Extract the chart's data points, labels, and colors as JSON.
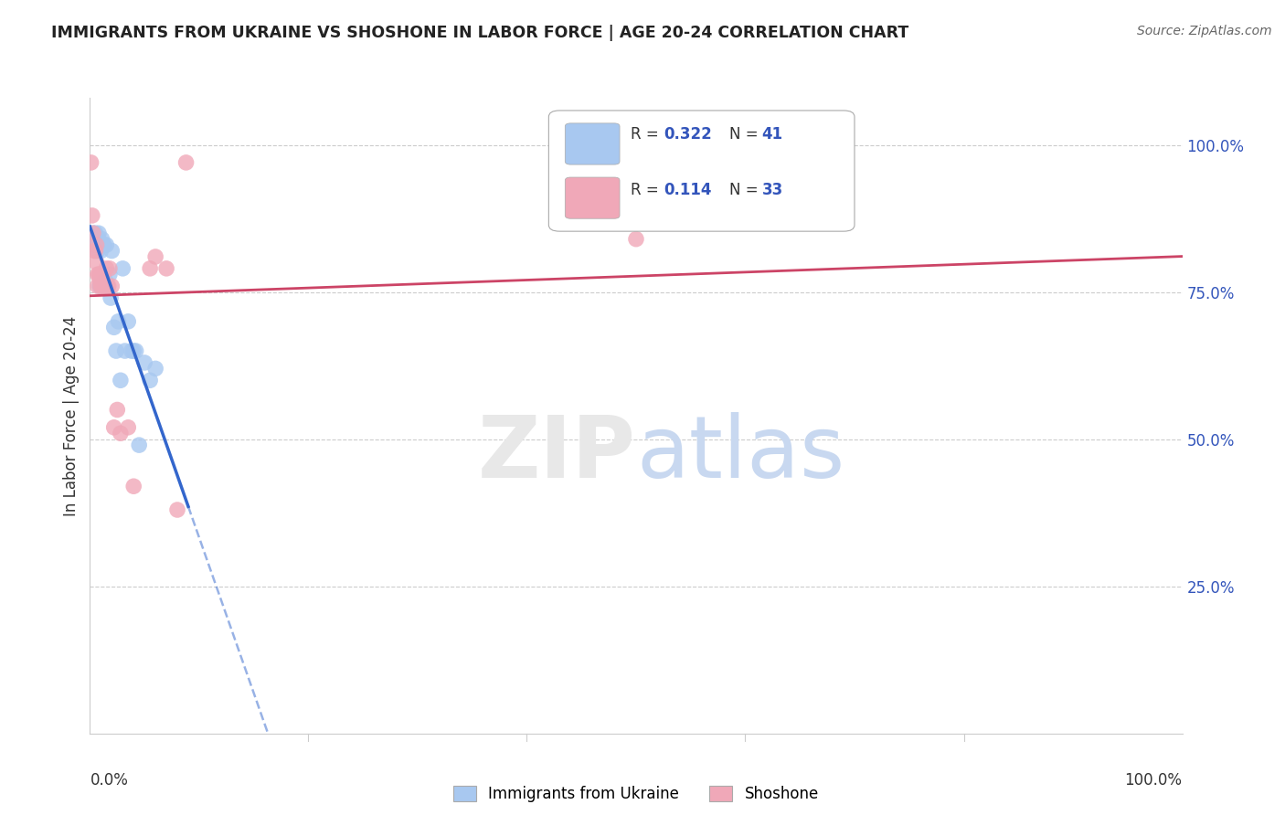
{
  "title": "IMMIGRANTS FROM UKRAINE VS SHOSHONE IN LABOR FORCE | AGE 20-24 CORRELATION CHART",
  "source": "Source: ZipAtlas.com",
  "ylabel": "In Labor Force | Age 20-24",
  "ytick_labels": [
    "100.0%",
    "75.0%",
    "50.0%",
    "25.0%"
  ],
  "ytick_values": [
    1.0,
    0.75,
    0.5,
    0.25
  ],
  "ukraine_color": "#a8c8f0",
  "ukraine_color_line": "#3366cc",
  "shoshone_color": "#f0a8b8",
  "shoshone_color_line": "#cc4466",
  "ukraine_R": "0.322",
  "ukraine_N": "41",
  "shoshone_R": "0.114",
  "shoshone_N": "33",
  "ukraine_points_x": [
    0.001,
    0.002,
    0.003,
    0.003,
    0.004,
    0.004,
    0.005,
    0.005,
    0.005,
    0.006,
    0.006,
    0.007,
    0.007,
    0.008,
    0.008,
    0.009,
    0.01,
    0.01,
    0.011,
    0.012,
    0.013,
    0.014,
    0.015,
    0.016,
    0.018,
    0.019,
    0.02,
    0.022,
    0.024,
    0.026,
    0.028,
    0.03,
    0.032,
    0.035,
    0.038,
    0.04,
    0.042,
    0.045,
    0.05,
    0.055,
    0.06
  ],
  "ukraine_points_y": [
    0.84,
    0.83,
    0.85,
    0.84,
    0.84,
    0.83,
    0.85,
    0.84,
    0.83,
    0.84,
    0.83,
    0.84,
    0.82,
    0.85,
    0.84,
    0.76,
    0.83,
    0.82,
    0.84,
    0.83,
    0.83,
    0.77,
    0.83,
    0.76,
    0.78,
    0.74,
    0.82,
    0.69,
    0.65,
    0.7,
    0.6,
    0.79,
    0.65,
    0.7,
    0.65,
    0.65,
    0.65,
    0.49,
    0.63,
    0.6,
    0.62
  ],
  "shoshone_points_x": [
    0.001,
    0.002,
    0.003,
    0.004,
    0.005,
    0.006,
    0.006,
    0.007,
    0.007,
    0.008,
    0.009,
    0.009,
    0.01,
    0.011,
    0.012,
    0.013,
    0.014,
    0.015,
    0.016,
    0.017,
    0.018,
    0.02,
    0.022,
    0.025,
    0.028,
    0.035,
    0.04,
    0.055,
    0.06,
    0.07,
    0.08,
    0.088,
    0.5
  ],
  "shoshone_points_y": [
    0.97,
    0.88,
    0.85,
    0.82,
    0.82,
    0.83,
    0.8,
    0.78,
    0.76,
    0.78,
    0.78,
    0.77,
    0.76,
    0.76,
    0.78,
    0.76,
    0.76,
    0.79,
    0.76,
    0.76,
    0.79,
    0.76,
    0.52,
    0.55,
    0.51,
    0.52,
    0.42,
    0.79,
    0.81,
    0.79,
    0.38,
    0.97,
    0.84
  ],
  "xlim": [
    0.0,
    1.0
  ],
  "ylim": [
    0.0,
    1.08
  ],
  "background_color": "#ffffff",
  "grid_color": "#cccccc"
}
